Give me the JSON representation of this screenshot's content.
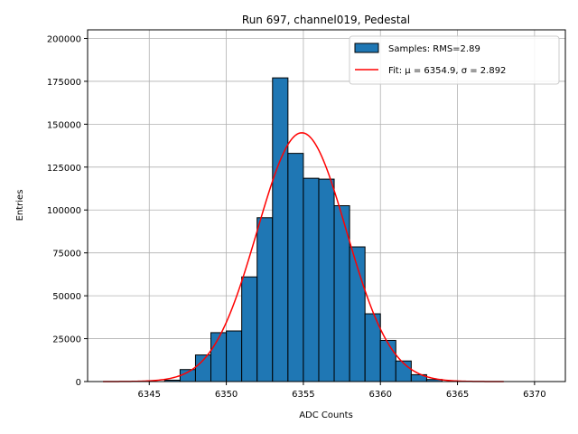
{
  "chart_data": {
    "type": "bar",
    "title": "Run 697, channel019, Pedestal",
    "xlabel": "ADC Counts",
    "ylabel": "Entries",
    "xlim": [
      6341,
      6372
    ],
    "ylim": [
      0,
      205000
    ],
    "xticks": [
      6345,
      6350,
      6355,
      6360,
      6365,
      6370
    ],
    "yticks": [
      0,
      25000,
      50000,
      75000,
      100000,
      125000,
      150000,
      175000,
      200000
    ],
    "grid": true,
    "legend_position": "top-right",
    "histogram": {
      "name": "Samples: RMS=2.89",
      "bin_width": 1,
      "bin_starts": [
        6346,
        6347,
        6348,
        6349,
        6350,
        6351,
        6352,
        6353,
        6354,
        6355,
        6356,
        6357,
        6358,
        6359,
        6360,
        6361,
        6362,
        6363
      ],
      "values": [
        800,
        7000,
        15500,
        28500,
        29500,
        61000,
        95500,
        177000,
        133000,
        118500,
        118000,
        102500,
        78500,
        39500,
        24000,
        12000,
        4000,
        1200
      ],
      "color": "#1f77b4",
      "edge_color": "#000000"
    },
    "fit": {
      "name": "Fit: μ = 6354.9, σ = 2.892",
      "type": "gaussian",
      "mu": 6354.9,
      "sigma": 2.892,
      "amplitude": 145000,
      "x_range": [
        6342,
        6368
      ],
      "color": "#ff0000"
    }
  }
}
